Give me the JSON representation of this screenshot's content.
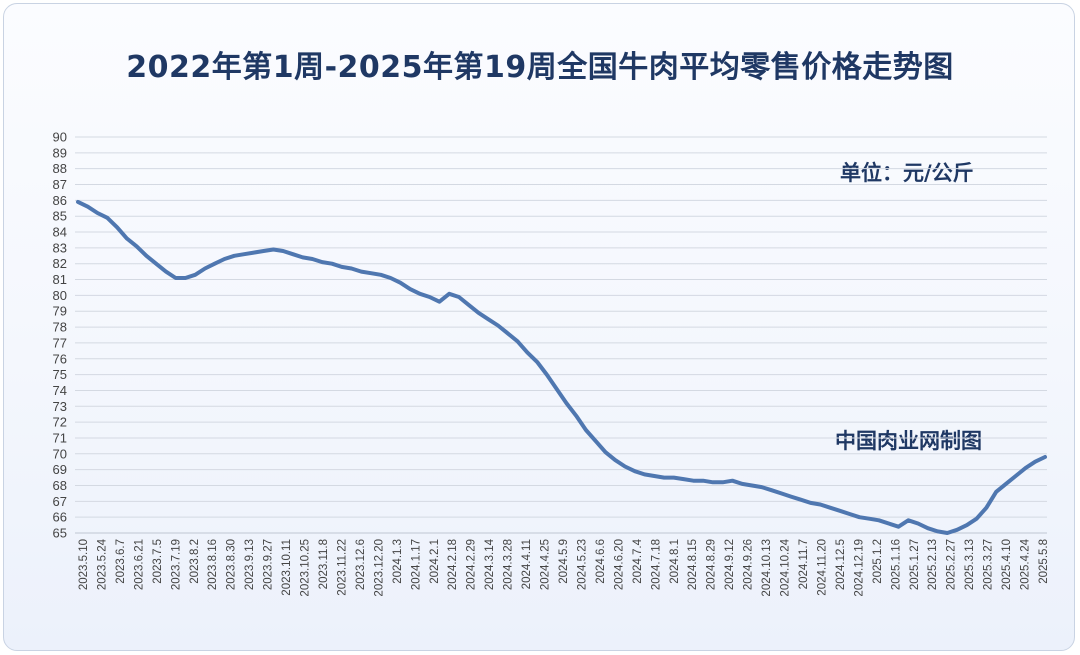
{
  "chart_data": {
    "type": "line",
    "title": "2022年第1周-2025年第19周全国牛肉平均零售价格走势图",
    "unit_label": "单位：元/公斤",
    "credit": "中国肉业网制图",
    "ylim": [
      65,
      90
    ],
    "y_ticks": [
      65,
      66,
      67,
      68,
      69,
      70,
      71,
      72,
      73,
      74,
      75,
      76,
      77,
      78,
      79,
      80,
      81,
      82,
      83,
      84,
      85,
      86,
      87,
      88,
      89,
      90
    ],
    "grid": "horizontal",
    "x_tick_labels": [
      "2023.5.10",
      "2023.5.24",
      "2023.6.7",
      "2023.6.21",
      "2023.7.5",
      "2023.7.19",
      "2023.8.2",
      "2023.8.16",
      "2023.8.30",
      "2023.9.13",
      "2023.9.27",
      "2023.10.11",
      "2023.10.25",
      "2023.11.8",
      "2023.11.22",
      "2023.12.6",
      "2023.12.20",
      "2024.1.3",
      "2024.1.17",
      "2024.2.1",
      "2024.2.18",
      "2024.2.29",
      "2024.3.14",
      "2024.3.28",
      "2024.4.11",
      "2024.4.25",
      "2024.5.9",
      "2024.5.23",
      "2024.6.6",
      "2024.6.20",
      "2024.7.4",
      "2024.7.18",
      "2024.8.1",
      "2024.8.15",
      "2024.8.29",
      "2024.9.12",
      "2024.9.26",
      "2024.10.13",
      "2024.10.24",
      "2024.11.7",
      "2024.11.20",
      "2024.12.5",
      "2024.12.19",
      "2025.1.2",
      "2025.1.16",
      "2025.1.27",
      "2025.2.13",
      "2025.2.27",
      "2025.3.13",
      "2025.3.27",
      "2025.4.10",
      "2025.4.24",
      "2025.5.8"
    ],
    "series": [
      {
        "color": "#4f77b0",
        "values": [
          85.9,
          85.6,
          85.2,
          84.9,
          84.3,
          83.6,
          83.1,
          82.5,
          82.0,
          81.5,
          81.1,
          81.1,
          81.3,
          81.7,
          82.0,
          82.3,
          82.5,
          82.6,
          82.7,
          82.8,
          82.9,
          82.8,
          82.6,
          82.4,
          82.3,
          82.1,
          82.0,
          81.8,
          81.7,
          81.5,
          81.4,
          81.3,
          81.1,
          80.8,
          80.4,
          80.1,
          79.9,
          79.6,
          80.1,
          79.9,
          79.4,
          78.9,
          78.5,
          78.1,
          77.6,
          77.1,
          76.4,
          75.8,
          75.0,
          74.1,
          73.2,
          72.4,
          71.5,
          70.8,
          70.1,
          69.6,
          69.2,
          68.9,
          68.7,
          68.6,
          68.5,
          68.5,
          68.4,
          68.3,
          68.3,
          68.2,
          68.2,
          68.3,
          68.1,
          68.0,
          67.9,
          67.7,
          67.5,
          67.3,
          67.1,
          66.9,
          66.8,
          66.6,
          66.4,
          66.2,
          66.0,
          65.9,
          65.8,
          65.6,
          65.4,
          65.8,
          65.6,
          65.3,
          65.1,
          65.0,
          65.2,
          65.5,
          65.9,
          66.6,
          67.6,
          68.1,
          68.6,
          69.1,
          69.5,
          69.8
        ]
      }
    ]
  }
}
